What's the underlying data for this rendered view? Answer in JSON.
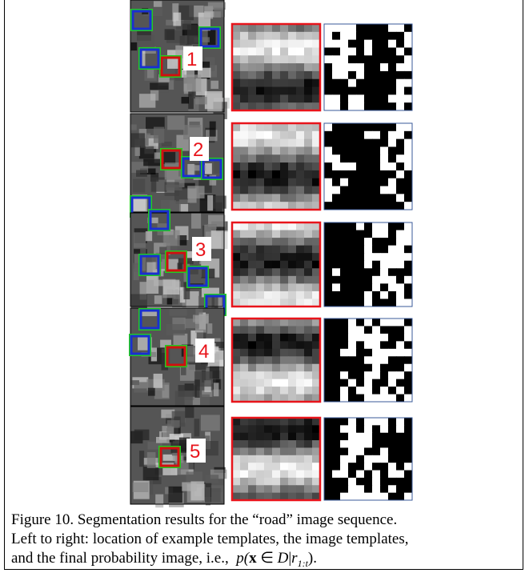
{
  "figure": {
    "labels": [
      "1",
      "2",
      "3",
      "4",
      "5"
    ]
  },
  "caption": {
    "line1": "Figure 10.  Segmentation results for the “road” image sequence.",
    "line2": "Left to right: location of example templates, the image templates,",
    "line3": "and the final probability image, i.e.,",
    "formula": [
      "p(",
      "x",
      " ∈ ",
      "D",
      "|",
      "r",
      "1:t",
      ")."
    ]
  }
}
